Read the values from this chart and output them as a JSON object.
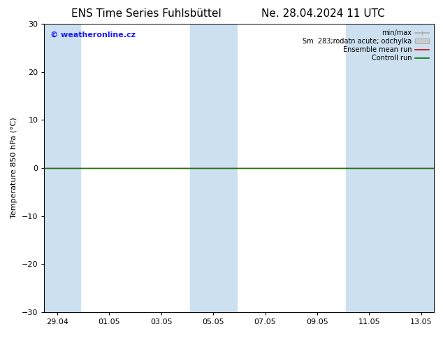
{
  "title_left": "ENS Time Series Fuhlsbüttel",
  "title_right": "Ne. 28.04.2024 11 UTC",
  "ylabel": "Temperature 850 hPa (°C)",
  "ylim": [
    -30,
    30
  ],
  "yticks": [
    -30,
    -20,
    -10,
    0,
    10,
    20,
    30
  ],
  "x_tick_labels": [
    "29.04",
    "01.05",
    "03.05",
    "05.05",
    "07.05",
    "09.05",
    "11.05",
    "13.05"
  ],
  "x_tick_positions": [
    0,
    2,
    4,
    6,
    8,
    10,
    12,
    14
  ],
  "x_min": -0.5,
  "x_max": 14.5,
  "watermark": "© weatheronline.cz",
  "watermark_color": "#1a1aff",
  "bg_color": "#ffffff",
  "plot_bg_color": "#ffffff",
  "shaded_columns": [
    {
      "x_start": -0.5,
      "x_end": 0.9
    },
    {
      "x_start": 5.1,
      "x_end": 6.9
    },
    {
      "x_start": 11.1,
      "x_end": 14.5
    }
  ],
  "shaded_color": "#cce0f0",
  "control_run_color": "#007700",
  "ensemble_mean_color": "#cc0000",
  "minmax_color": "#aaaaaa",
  "spread_color": "#cccccc",
  "legend_labels": [
    "min/max",
    "Sm  283;rodatn acute; odchylka",
    "Ensemble mean run",
    "Controll run"
  ],
  "title_fontsize": 11,
  "axis_fontsize": 8,
  "tick_fontsize": 8,
  "legend_fontsize": 7
}
